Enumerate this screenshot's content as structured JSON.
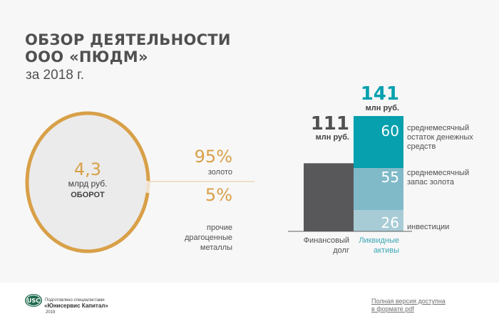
{
  "header": {
    "title_line1": "ОБЗОР ДЕЯТЕЛЬНОСТИ",
    "title_line2": "ООО «ПЮДМ»",
    "subtitle": "за 2018 г."
  },
  "colors": {
    "gold": "#d8a048",
    "gold_light": "#f1e2cb",
    "dark_gray": "#58585a",
    "teal": "#06a0ae",
    "teal_mid": "#80bac8",
    "teal_light": "#a8ccd6"
  },
  "chart_data": [
    {
      "type": "pie",
      "title": "ОБОРОТ",
      "center_value": "4,3",
      "center_unit": "млрд руб.",
      "center_label": "ОБОРОТ",
      "slices": [
        {
          "label": "золото",
          "value": 95,
          "display": "95%"
        },
        {
          "label": "прочие драгоценные металлы",
          "value": 5,
          "display": "5%"
        }
      ]
    },
    {
      "type": "bar",
      "stacked": true,
      "categories": [
        "Финансовый долг",
        "Ликвидные активы"
      ],
      "category_label_lines": [
        [
          "Финансовый",
          "долг"
        ],
        [
          "Ликвидные",
          "активы"
        ]
      ],
      "totals": [
        {
          "value": 111,
          "display": "111",
          "unit": "млн руб."
        },
        {
          "value": 141,
          "display": "141",
          "unit": "млн руб."
        }
      ],
      "series": [
        {
          "name": "Финансовый долг",
          "values": [
            111,
            0
          ]
        },
        {
          "name": "инвестиции",
          "label_lines": [
            "инвестиции"
          ],
          "values": [
            0,
            26
          ],
          "display": "26"
        },
        {
          "name": "среднемесячный запас золота",
          "label_lines": [
            "среднемесячный",
            "запас золота"
          ],
          "values": [
            0,
            55
          ],
          "display": "55"
        },
        {
          "name": "среднемесячный остаток денежных средств",
          "label_lines": [
            "среднемесячный",
            "остаток денежных",
            "средств"
          ],
          "values": [
            0,
            60
          ],
          "display": "60"
        }
      ],
      "ylim": [
        0,
        141
      ]
    }
  ],
  "footer": {
    "logo_text": "USC",
    "prepared_by": "Подготовлено специалистами",
    "company": "«Юнисервис Капитал»",
    "year": "2019",
    "pdf_link_line1": "Полная версия доступна",
    "pdf_link_line2": "в формате pdf"
  }
}
